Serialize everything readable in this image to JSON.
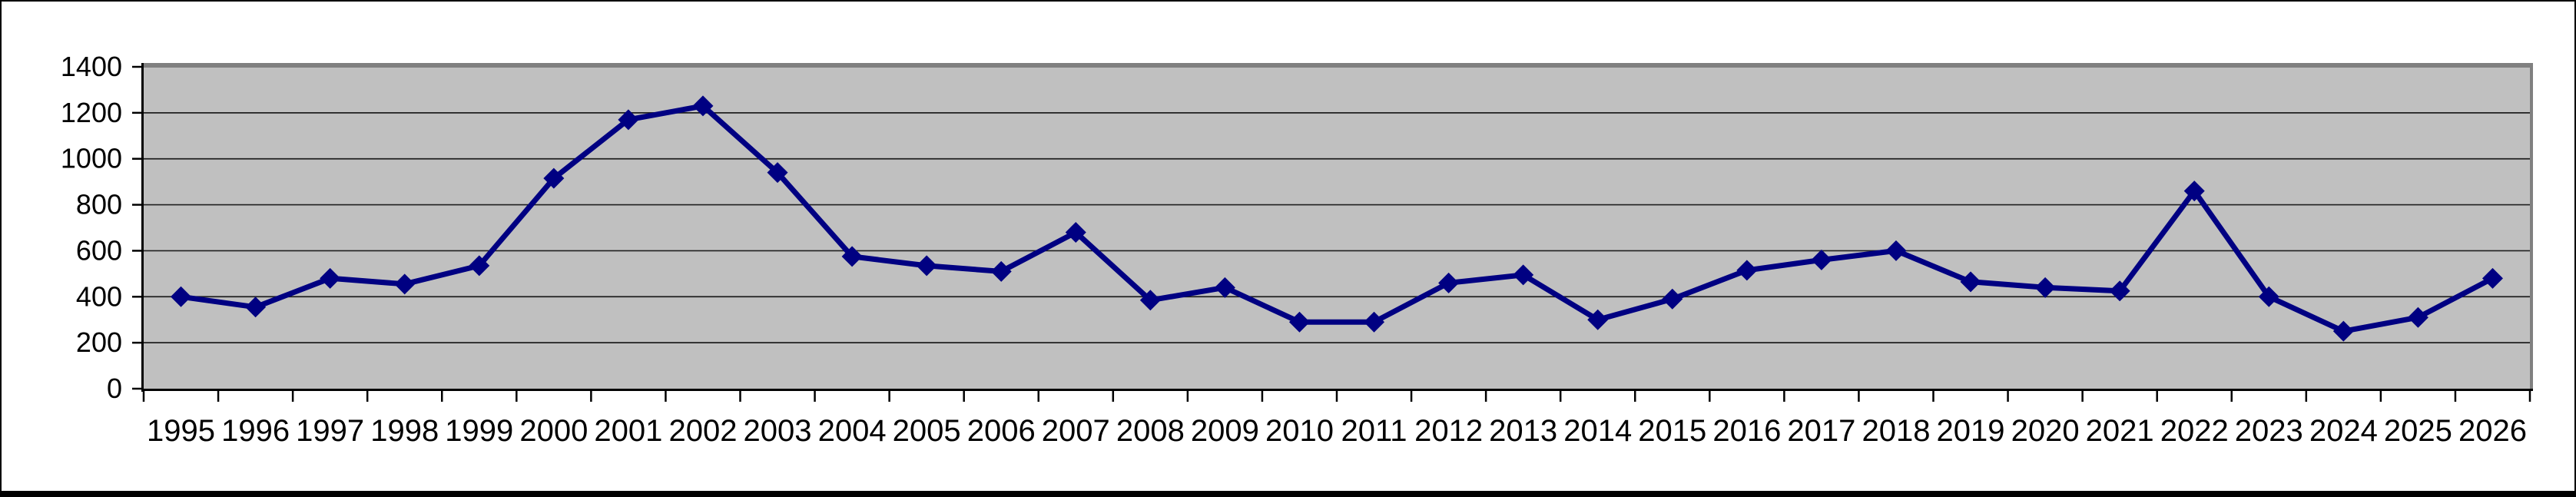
{
  "chart_data": {
    "type": "line",
    "title": "",
    "xlabel": "",
    "ylabel": "",
    "categories": [
      "1995",
      "1996",
      "1997",
      "1998",
      "1999",
      "2000",
      "2001",
      "2002",
      "2003",
      "2004",
      "2005",
      "2006",
      "2007",
      "2008",
      "2009",
      "2010",
      "2011",
      "2012",
      "2013",
      "2014",
      "2015",
      "2016",
      "2017",
      "2018",
      "2019",
      "2020",
      "2021",
      "2022",
      "2023",
      "2024",
      "2025",
      "2026"
    ],
    "series": [
      {
        "name": "",
        "values": [
          400,
          355,
          480,
          455,
          535,
          915,
          1170,
          1230,
          940,
          575,
          535,
          510,
          680,
          385,
          440,
          290,
          290,
          460,
          495,
          300,
          390,
          515,
          560,
          600,
          465,
          440,
          425,
          860,
          400,
          250,
          310,
          480
        ]
      }
    ],
    "ylim": [
      0,
      1400
    ],
    "yticks": [
      0,
      200,
      400,
      600,
      800,
      1000,
      1200,
      1400
    ],
    "grid": "horizontal-only",
    "legend": "none",
    "marker": "diamond",
    "colors": {
      "series_line": "#000082",
      "marker_fill": "#000082",
      "plot_background": "#C0C0C0",
      "page_background": "#FFFFFF",
      "gridline": "#1F1F1F",
      "axis_line": "#000000",
      "plot_border_shadow": "#808080",
      "tick": "#000000",
      "label_text": "#000000",
      "outer_frame": "#000000"
    }
  }
}
